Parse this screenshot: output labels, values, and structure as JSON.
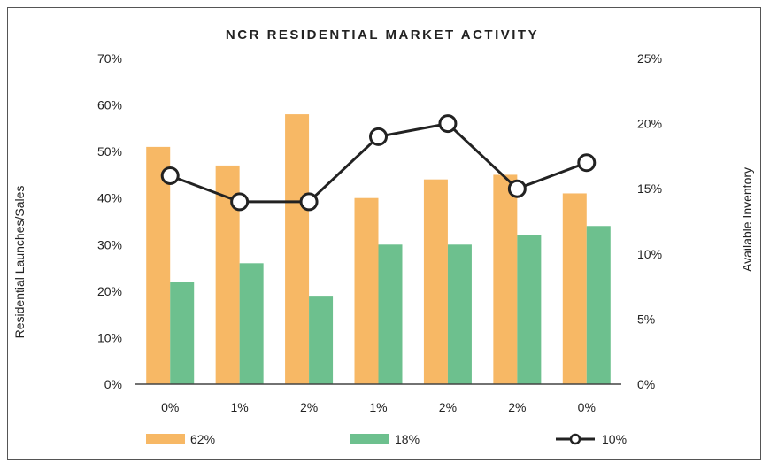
{
  "chart_data": {
    "type": "bar",
    "title": "NCR RESIDENTIAL MARKET ACTIVITY",
    "ylabel": "Residential Launches/Sales",
    "y2label": "Available Inventory",
    "ylim": [
      0,
      70
    ],
    "y2lim": [
      0,
      25
    ],
    "yticks": [
      "0%",
      "10%",
      "20%",
      "30%",
      "40%",
      "50%",
      "60%",
      "70%"
    ],
    "y2ticks": [
      "0%",
      "5%",
      "10%",
      "15%",
      "20%",
      "25%"
    ],
    "categories": [
      "0%",
      "1%",
      "2%",
      "1%",
      "2%",
      "2%",
      "0%"
    ],
    "series": [
      {
        "name": "62%",
        "type": "bar",
        "axis": "left",
        "color": "#F7B865",
        "values": [
          51,
          47,
          58,
          40,
          44,
          45,
          41
        ]
      },
      {
        "name": "18%",
        "type": "bar",
        "axis": "left",
        "color": "#6DC08E",
        "values": [
          22,
          26,
          19,
          30,
          30,
          32,
          34
        ]
      },
      {
        "name": "10%",
        "type": "line",
        "axis": "right",
        "color": "#222222",
        "values": [
          16,
          14,
          14,
          19,
          20,
          15,
          17
        ]
      }
    ],
    "grid": false,
    "legend": "bottom"
  }
}
